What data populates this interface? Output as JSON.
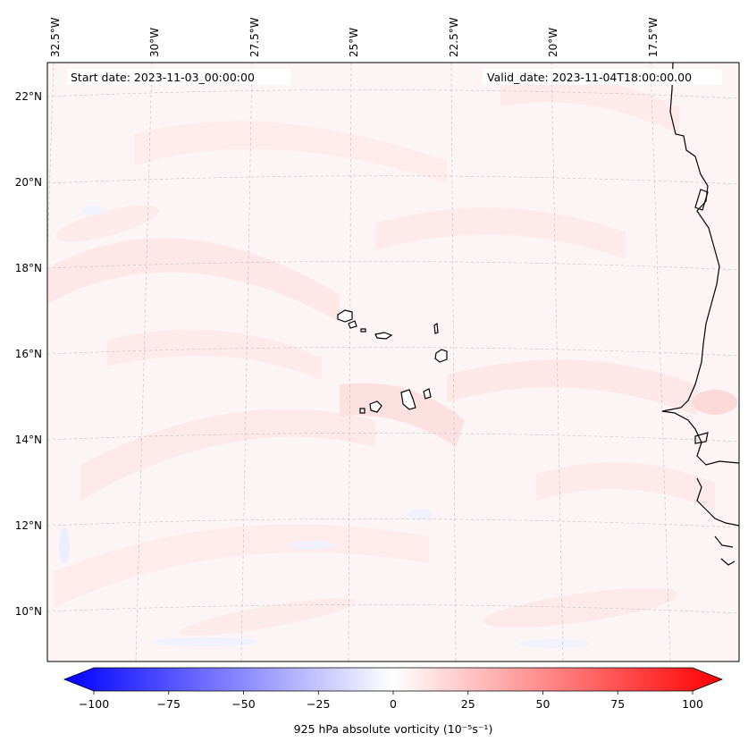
{
  "header": {
    "start_date": "Start date: 2023-11-03_00:00:00",
    "valid_date": "Valid_date: 2023-11-04T18:00:00.00"
  },
  "axes": {
    "longitude_labels": [
      "32.5°W",
      "30°W",
      "27.5°W",
      "25°W",
      "22.5°W",
      "20°W",
      "17.5°W"
    ],
    "latitude_labels": [
      "22°N",
      "20°N",
      "18°N",
      "16°N",
      "14°N",
      "12°N",
      "10°N"
    ]
  },
  "colorbar": {
    "title": "925 hPa absolute vorticity (10⁻⁵s⁻¹)",
    "tick_labels": [
      "−100",
      "−75",
      "−50",
      "−25",
      "0",
      "25",
      "50",
      "75",
      "100"
    ],
    "min": -100,
    "max": 100,
    "colors": {
      "negative": "#0000ff",
      "zero": "#ffffff",
      "positive": "#ff0000"
    }
  },
  "colors": {
    "background": "#fdf5f5",
    "light_positive": "#fde6e6",
    "light_negative": "#f2f4ff",
    "coastline": "#000000",
    "gridline": "#bbbbbb"
  }
}
